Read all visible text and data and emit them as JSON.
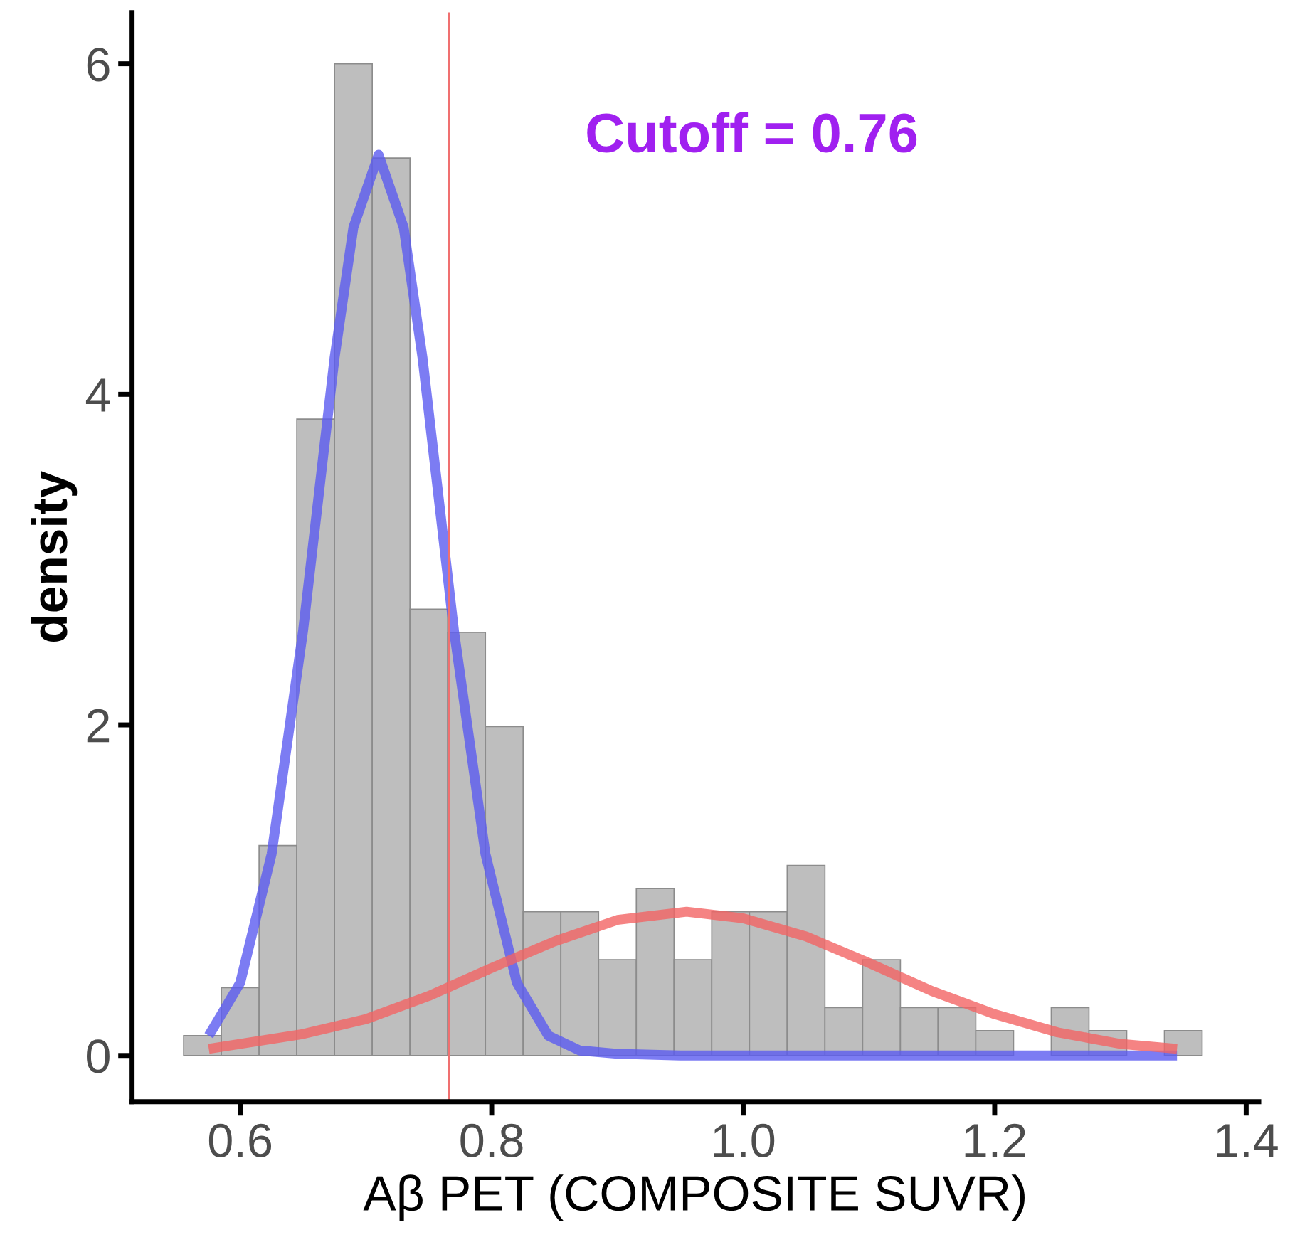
{
  "chart_data": {
    "type": "histogram",
    "xlabel": "Aβ PET (COMPOSITE SUVR)",
    "ylabel": "density",
    "bins": [
      0.555,
      0.585,
      0.615,
      0.645,
      0.675,
      0.705,
      0.735,
      0.765,
      0.795,
      0.825,
      0.855,
      0.885,
      0.915,
      0.945,
      0.975,
      1.005,
      1.035,
      1.065,
      1.095,
      1.125,
      1.155,
      1.185,
      1.215,
      1.245,
      1.275,
      1.305,
      1.335,
      1.365
    ],
    "values": [
      0.12,
      0.41,
      1.27,
      3.85,
      6.0,
      5.43,
      2.7,
      2.56,
      1.99,
      0.87,
      0.87,
      0.58,
      1.01,
      0.58,
      0.87,
      0.87,
      1.15,
      0.29,
      0.58,
      0.29,
      0.29,
      0.15,
      0,
      0.29,
      0.15,
      0,
      0.15
    ],
    "color": "#bebebe",
    "series": [
      {
        "type": "line",
        "color": "#5b5bf0",
        "x": [
          0.575,
          0.6,
          0.625,
          0.65,
          0.675,
          0.69,
          0.71,
          0.73,
          0.745,
          0.77,
          0.795,
          0.82,
          0.845,
          0.87,
          0.9,
          0.95,
          1.0,
          1.1,
          1.2,
          1.3,
          1.345
        ],
        "values": [
          0.12,
          0.44,
          1.22,
          2.57,
          4.22,
          5.01,
          5.45,
          5.01,
          4.22,
          2.57,
          1.22,
          0.44,
          0.12,
          0.03,
          0.01,
          0,
          0,
          0,
          0,
          0,
          0
        ]
      },
      {
        "type": "line",
        "color": "#f26464",
        "x": [
          0.575,
          0.65,
          0.7,
          0.75,
          0.8,
          0.85,
          0.9,
          0.955,
          1.0,
          1.05,
          1.1,
          1.15,
          1.2,
          1.25,
          1.3,
          1.345
        ],
        "values": [
          0.04,
          0.13,
          0.22,
          0.36,
          0.53,
          0.69,
          0.82,
          0.87,
          0.83,
          0.72,
          0.56,
          0.39,
          0.25,
          0.14,
          0.07,
          0.04
        ]
      }
    ],
    "ref_lines": [
      {
        "axis": "x",
        "value": 0.766,
        "color": "#f07070"
      }
    ],
    "annotations": [
      "Cutoff = 0.76"
    ],
    "xlim": [
      0.514,
      1.41
    ],
    "ylim": [
      -0.28,
      6.31
    ],
    "xticks": [
      0.6,
      0.8,
      {
        "value": 1.0,
        "label": "1.0"
      },
      1.2,
      1.4
    ],
    "yticks": [
      0,
      2,
      4,
      6
    ],
    "grid": false
  }
}
